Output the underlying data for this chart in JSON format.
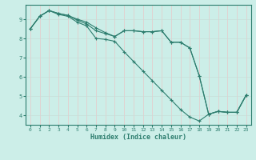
{
  "xlabel": "Humidex (Indice chaleur)",
  "bg_color": "#cceee8",
  "grid_color_v": "#e8c8c8",
  "grid_color_h": "#c8ddd8",
  "line_color": "#2d7d6e",
  "xlim": [
    -0.5,
    23.5
  ],
  "ylim": [
    3.5,
    9.75
  ],
  "yticks": [
    4,
    5,
    6,
    7,
    8,
    9
  ],
  "xticks": [
    0,
    1,
    2,
    3,
    4,
    5,
    6,
    7,
    8,
    9,
    10,
    11,
    12,
    13,
    14,
    15,
    16,
    17,
    18,
    19,
    20,
    21,
    22,
    23
  ],
  "series1": [
    [
      0,
      8.5
    ],
    [
      1,
      9.15
    ],
    [
      2,
      9.45
    ],
    [
      3,
      9.25
    ],
    [
      4,
      9.15
    ],
    [
      5,
      8.85
    ],
    [
      6,
      8.65
    ],
    [
      7,
      8.0
    ],
    [
      8,
      7.95
    ],
    [
      9,
      7.85
    ],
    [
      10,
      7.3
    ],
    [
      11,
      6.8
    ],
    [
      12,
      6.3
    ],
    [
      13,
      5.8
    ],
    [
      14,
      5.3
    ],
    [
      15,
      4.8
    ],
    [
      16,
      4.3
    ],
    [
      17,
      3.9
    ],
    [
      18,
      3.7
    ],
    [
      19,
      4.05
    ],
    [
      20,
      4.2
    ],
    [
      21,
      4.15
    ],
    [
      22,
      4.15
    ],
    [
      23,
      5.05
    ]
  ],
  "series2": [
    [
      0,
      8.5
    ],
    [
      1,
      9.15
    ],
    [
      2,
      9.45
    ],
    [
      3,
      9.3
    ],
    [
      4,
      9.2
    ],
    [
      5,
      8.95
    ],
    [
      6,
      8.75
    ],
    [
      7,
      8.4
    ],
    [
      8,
      8.25
    ],
    [
      9,
      8.1
    ],
    [
      10,
      8.4
    ],
    [
      11,
      8.4
    ],
    [
      12,
      8.35
    ],
    [
      13,
      8.35
    ],
    [
      14,
      8.4
    ],
    [
      15,
      7.8
    ],
    [
      16,
      7.8
    ],
    [
      17,
      7.5
    ],
    [
      18,
      6.05
    ],
    [
      19,
      4.05
    ],
    [
      20,
      4.2
    ],
    [
      21,
      4.15
    ],
    [
      22,
      4.15
    ],
    [
      23,
      5.05
    ]
  ],
  "series3": [
    [
      0,
      8.5
    ],
    [
      1,
      9.15
    ],
    [
      2,
      9.45
    ],
    [
      3,
      9.3
    ],
    [
      4,
      9.2
    ],
    [
      5,
      9.0
    ],
    [
      6,
      8.85
    ],
    [
      7,
      8.55
    ],
    [
      8,
      8.3
    ],
    [
      9,
      8.1
    ],
    [
      10,
      8.4
    ],
    [
      11,
      8.4
    ],
    [
      12,
      8.35
    ],
    [
      13,
      8.35
    ],
    [
      14,
      8.4
    ],
    [
      15,
      7.8
    ],
    [
      16,
      7.8
    ],
    [
      17,
      7.5
    ],
    [
      18,
      6.05
    ],
    [
      19,
      4.05
    ],
    [
      20,
      4.2
    ],
    [
      21,
      4.15
    ],
    [
      22,
      4.15
    ],
    [
      23,
      5.05
    ]
  ]
}
